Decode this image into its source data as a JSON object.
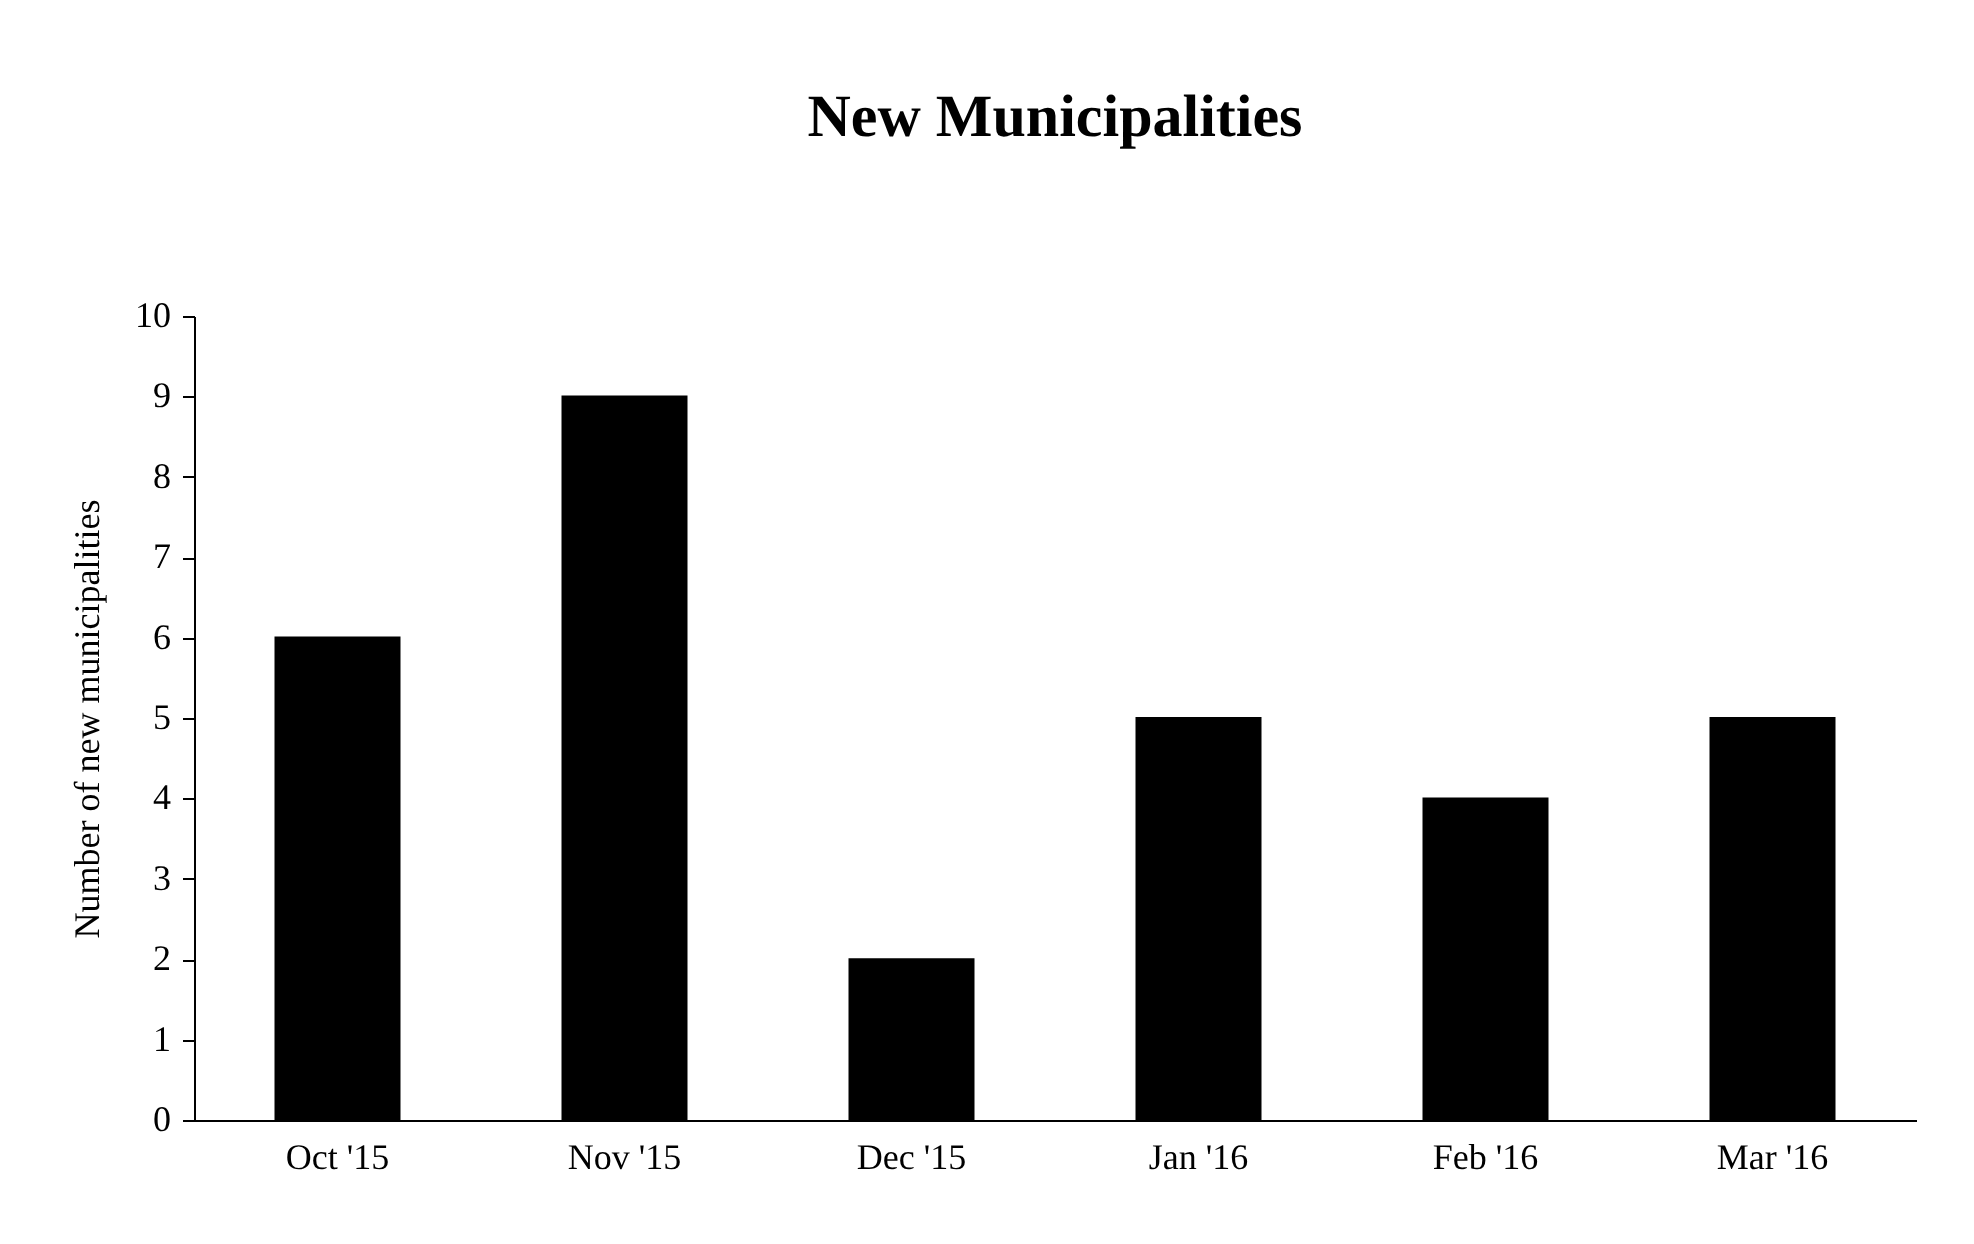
{
  "chart_data": {
    "type": "bar",
    "title": "New Municipalities",
    "ylabel": "Number of new municipalities",
    "categories": [
      "Oct '15",
      "Nov '15",
      "Dec '15",
      "Jan '16",
      "Feb '16",
      "Mar '16"
    ],
    "values": [
      6,
      9,
      2,
      5,
      4,
      5
    ],
    "color": "#000000",
    "ylim": [
      0,
      10
    ],
    "yticks": [
      0,
      1,
      2,
      3,
      4,
      5,
      6,
      7,
      8,
      9,
      10
    ],
    "grid": false
  }
}
